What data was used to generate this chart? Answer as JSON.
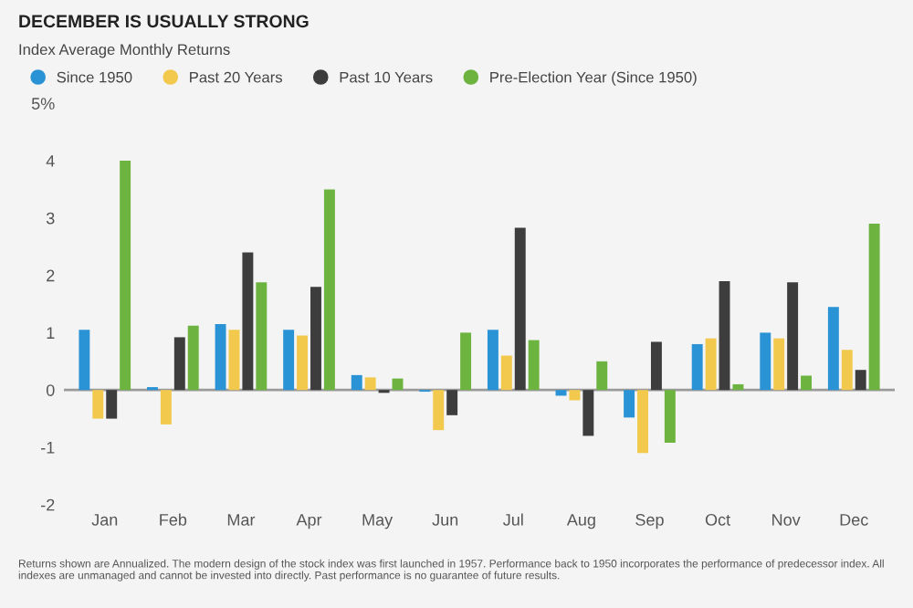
{
  "chart_data": {
    "type": "bar",
    "title": "DECEMBER IS USUALLY STRONG",
    "subtitle": "Index Average Monthly Returns",
    "categories": [
      "Jan",
      "Feb",
      "Mar",
      "Apr",
      "May",
      "Jun",
      "Jul",
      "Aug",
      "Sep",
      "Oct",
      "Nov",
      "Dec"
    ],
    "series": [
      {
        "name": "Since 1950",
        "color": "#2a93d5",
        "values": [
          1.05,
          0.05,
          1.15,
          1.05,
          0.26,
          -0.03,
          1.05,
          -0.1,
          -0.48,
          0.8,
          1.0,
          1.45
        ]
      },
      {
        "name": "Past 20 Years",
        "color": "#f2c94c",
        "values": [
          -0.5,
          -0.6,
          1.05,
          0.95,
          0.22,
          -0.7,
          0.6,
          -0.18,
          -1.1,
          0.9,
          0.9,
          0.7
        ]
      },
      {
        "name": "Past 10 Years",
        "color": "#3d3d3d",
        "values": [
          -0.5,
          0.92,
          2.4,
          1.8,
          -0.05,
          -0.44,
          2.83,
          -0.8,
          0.84,
          1.9,
          1.88,
          0.35
        ]
      },
      {
        "name": "Pre-Election Year (Since 1950)",
        "color": "#6db33f",
        "values": [
          4.0,
          1.12,
          1.88,
          3.5,
          0.2,
          1.0,
          0.87,
          0.5,
          -0.92,
          0.1,
          0.25,
          2.9
        ]
      }
    ],
    "ylim": [
      -2,
      5
    ],
    "yticks": [
      -2,
      -1,
      0,
      1,
      2,
      3,
      4,
      {
        "value": 5,
        "label": "5%"
      }
    ],
    "ref_lines": [
      {
        "axis": "y",
        "value": 0,
        "color": "#9a9a9a"
      }
    ],
    "grid": false,
    "legend": "top left",
    "marker": "circle",
    "annotations": [
      "Returns shown are Annualized. The modern design of the stock index was first launched in 1957. Performance back to 1950 incorporates the performance of predecessor index. All indexes are unmanaged and cannot be invested into directly. Past performance is no guarantee of future results."
    ]
  }
}
